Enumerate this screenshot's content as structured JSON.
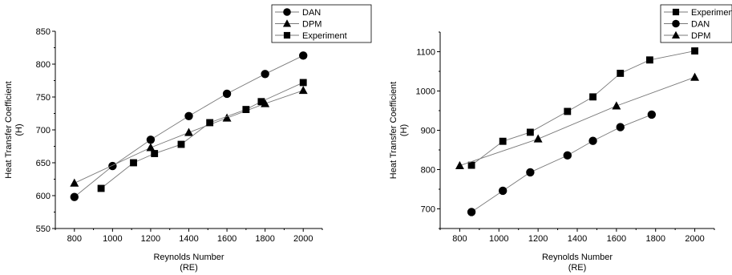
{
  "chart_data": [
    {
      "type": "scatter",
      "xlabel": "Reynolds Number",
      "xlabel_sub": "(RE)",
      "ylabel": "Heat Transfer Coefficient",
      "ylabel_sub": "(H)",
      "xlim": [
        700,
        2100
      ],
      "ylim": [
        550,
        850
      ],
      "xticks": [
        800,
        1000,
        1200,
        1400,
        1600,
        1800,
        2000
      ],
      "yticks": [
        550,
        600,
        650,
        700,
        750,
        800,
        850
      ],
      "legend_position": "top-right",
      "series": [
        {
          "name": "DAN",
          "marker": "circle",
          "x": [
            800,
            1000,
            1200,
            1400,
            1600,
            1800,
            2000
          ],
          "y": [
            598,
            645,
            685,
            721,
            755,
            785,
            813
          ]
        },
        {
          "name": "DPM",
          "marker": "triangle",
          "x": [
            800,
            1200,
            1400,
            1600,
            1800,
            2000
          ],
          "y": [
            619,
            673,
            696,
            718,
            740,
            760
          ]
        },
        {
          "name": "Experiment",
          "marker": "square",
          "x": [
            940,
            1110,
            1220,
            1360,
            1510,
            1700,
            1780,
            2000
          ],
          "y": [
            611,
            650,
            664,
            678,
            711,
            731,
            743,
            772
          ]
        }
      ]
    },
    {
      "type": "scatter",
      "xlabel": "Reynolds Number",
      "xlabel_sub": "(RE)",
      "ylabel": "Heat Transfer Coefficient",
      "ylabel_sub": "(H)",
      "xlim": [
        700,
        2100
      ],
      "ylim": [
        650,
        1150
      ],
      "xticks": [
        800,
        1000,
        1200,
        1400,
        1600,
        1800,
        2000
      ],
      "yticks": [
        700,
        800,
        900,
        1000,
        1100
      ],
      "legend_position": "top-right",
      "series": [
        {
          "name": "Experimen",
          "marker": "square",
          "x": [
            860,
            1020,
            1160,
            1350,
            1480,
            1620,
            1770,
            2000
          ],
          "y": [
            811,
            872,
            895,
            948,
            985,
            1045,
            1079,
            1102
          ]
        },
        {
          "name": "DAN",
          "marker": "circle",
          "x": [
            860,
            1020,
            1160,
            1350,
            1480,
            1620,
            1780
          ],
          "y": [
            692,
            746,
            793,
            836,
            873,
            908,
            940
          ]
        },
        {
          "name": "DPM",
          "marker": "triangle",
          "x": [
            800,
            1200,
            1600,
            2000
          ],
          "y": [
            810,
            878,
            962,
            1035
          ]
        }
      ]
    }
  ]
}
